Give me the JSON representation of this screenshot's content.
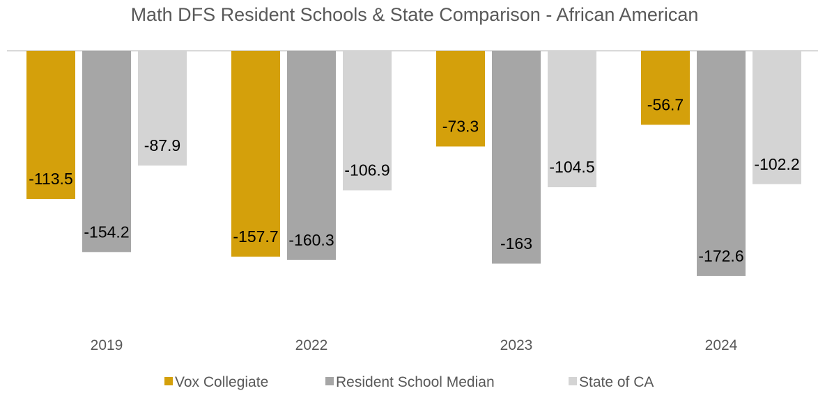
{
  "chart_data": {
    "type": "bar",
    "title": "Math DFS Resident Schools & State Comparison - African American",
    "categories": [
      "2019",
      "2022",
      "2023",
      "2024"
    ],
    "series": [
      {
        "name": "Vox Collegiate",
        "color": "#D4A00B",
        "values": [
          -113.5,
          -157.7,
          -73.3,
          -56.7
        ],
        "labels": [
          "-113.5",
          "-157.7",
          "-73.3",
          "-56.7"
        ]
      },
      {
        "name": "Resident School Median",
        "color": "#A6A6A6",
        "values": [
          -154.2,
          -160.3,
          -163,
          -172.6
        ],
        "labels": [
          "-154.2",
          "-160.3",
          "-163",
          "-172.6"
        ]
      },
      {
        "name": "State of CA",
        "color": "#D4D4D4",
        "values": [
          -87.9,
          -106.9,
          -104.5,
          -102.2
        ],
        "labels": [
          "-87.9",
          "-106.9",
          "-104.5",
          "-102.2"
        ]
      }
    ],
    "ylim": [
      -200,
      0
    ],
    "grid": false,
    "legend": "bottom"
  }
}
